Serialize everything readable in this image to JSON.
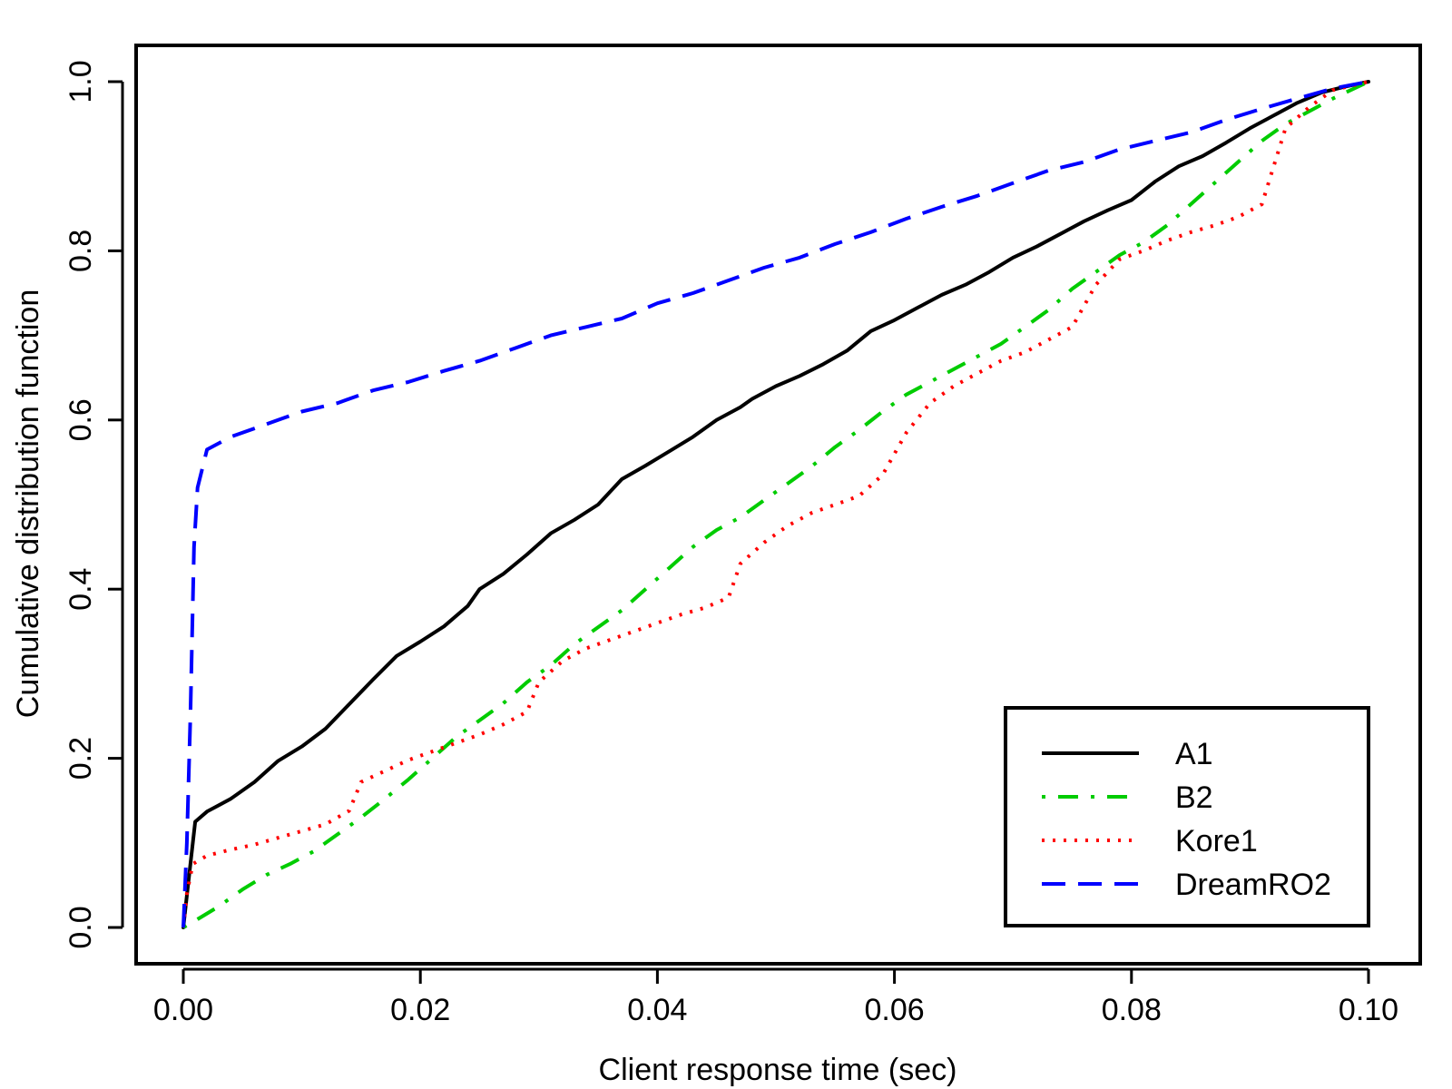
{
  "chart_data": {
    "type": "line",
    "title": "",
    "xlabel": "Client response time (sec)",
    "ylabel": "Cumulative distribution function",
    "xlim": [
      0,
      0.1
    ],
    "ylim": [
      0,
      1
    ],
    "xticks": [
      0,
      0.02,
      0.04,
      0.06,
      0.08,
      0.1
    ],
    "xtick_labels": [
      "0.00",
      "0.02",
      "0.04",
      "0.06",
      "0.08",
      "0.10"
    ],
    "yticks": [
      0,
      0.2,
      0.4,
      0.6,
      0.8,
      1
    ],
    "ytick_labels": [
      "0.0",
      "0.2",
      "0.4",
      "0.6",
      "0.8",
      "1.0"
    ],
    "grid": false,
    "legend": {
      "position": "bottom-right"
    },
    "series": [
      {
        "name": "A1",
        "color": "#000000",
        "linestyle": "solid",
        "points": [
          [
            0,
            0
          ],
          [
            0.0004,
            0.05
          ],
          [
            0.001,
            0.125
          ],
          [
            0.002,
            0.137
          ],
          [
            0.004,
            0.152
          ],
          [
            0.006,
            0.172
          ],
          [
            0.008,
            0.197
          ],
          [
            0.01,
            0.214
          ],
          [
            0.012,
            0.235
          ],
          [
            0.014,
            0.264
          ],
          [
            0.016,
            0.293
          ],
          [
            0.018,
            0.321
          ],
          [
            0.02,
            0.338
          ],
          [
            0.022,
            0.356
          ],
          [
            0.024,
            0.38
          ],
          [
            0.025,
            0.4
          ],
          [
            0.027,
            0.418
          ],
          [
            0.029,
            0.441
          ],
          [
            0.031,
            0.466
          ],
          [
            0.033,
            0.482
          ],
          [
            0.035,
            0.5
          ],
          [
            0.037,
            0.53
          ],
          [
            0.039,
            0.546
          ],
          [
            0.041,
            0.563
          ],
          [
            0.043,
            0.58
          ],
          [
            0.045,
            0.6
          ],
          [
            0.047,
            0.615
          ],
          [
            0.048,
            0.625
          ],
          [
            0.05,
            0.64
          ],
          [
            0.052,
            0.652
          ],
          [
            0.054,
            0.666
          ],
          [
            0.056,
            0.682
          ],
          [
            0.058,
            0.705
          ],
          [
            0.06,
            0.718
          ],
          [
            0.062,
            0.733
          ],
          [
            0.064,
            0.748
          ],
          [
            0.066,
            0.76
          ],
          [
            0.068,
            0.775
          ],
          [
            0.07,
            0.792
          ],
          [
            0.072,
            0.805
          ],
          [
            0.074,
            0.82
          ],
          [
            0.076,
            0.835
          ],
          [
            0.078,
            0.848
          ],
          [
            0.08,
            0.86
          ],
          [
            0.082,
            0.882
          ],
          [
            0.084,
            0.9
          ],
          [
            0.086,
            0.912
          ],
          [
            0.088,
            0.928
          ],
          [
            0.09,
            0.945
          ],
          [
            0.092,
            0.96
          ],
          [
            0.094,
            0.975
          ],
          [
            0.096,
            0.987
          ],
          [
            0.098,
            0.994
          ],
          [
            0.1,
            1.0
          ]
        ]
      },
      {
        "name": "B2",
        "color": "#00cc00",
        "linestyle": "dashdot",
        "points": [
          [
            0,
            0
          ],
          [
            0.001,
            0.008
          ],
          [
            0.003,
            0.025
          ],
          [
            0.005,
            0.045
          ],
          [
            0.007,
            0.062
          ],
          [
            0.009,
            0.075
          ],
          [
            0.011,
            0.09
          ],
          [
            0.013,
            0.11
          ],
          [
            0.015,
            0.13
          ],
          [
            0.017,
            0.152
          ],
          [
            0.019,
            0.175
          ],
          [
            0.021,
            0.2
          ],
          [
            0.023,
            0.225
          ],
          [
            0.025,
            0.245
          ],
          [
            0.027,
            0.265
          ],
          [
            0.029,
            0.29
          ],
          [
            0.031,
            0.31
          ],
          [
            0.033,
            0.335
          ],
          [
            0.035,
            0.355
          ],
          [
            0.037,
            0.375
          ],
          [
            0.039,
            0.4
          ],
          [
            0.041,
            0.425
          ],
          [
            0.043,
            0.45
          ],
          [
            0.045,
            0.47
          ],
          [
            0.047,
            0.485
          ],
          [
            0.049,
            0.505
          ],
          [
            0.051,
            0.525
          ],
          [
            0.053,
            0.545
          ],
          [
            0.055,
            0.568
          ],
          [
            0.057,
            0.588
          ],
          [
            0.059,
            0.61
          ],
          [
            0.061,
            0.63
          ],
          [
            0.063,
            0.645
          ],
          [
            0.065,
            0.66
          ],
          [
            0.067,
            0.675
          ],
          [
            0.069,
            0.69
          ],
          [
            0.071,
            0.71
          ],
          [
            0.073,
            0.73
          ],
          [
            0.075,
            0.755
          ],
          [
            0.077,
            0.775
          ],
          [
            0.079,
            0.795
          ],
          [
            0.081,
            0.81
          ],
          [
            0.083,
            0.83
          ],
          [
            0.085,
            0.855
          ],
          [
            0.087,
            0.88
          ],
          [
            0.089,
            0.905
          ],
          [
            0.091,
            0.93
          ],
          [
            0.093,
            0.95
          ],
          [
            0.095,
            0.965
          ],
          [
            0.097,
            0.98
          ],
          [
            0.1,
            1.0
          ]
        ]
      },
      {
        "name": "Kore1",
        "color": "#ff0000",
        "linestyle": "dotted",
        "points": [
          [
            0,
            0
          ],
          [
            0.0003,
            0.04
          ],
          [
            0.0008,
            0.075
          ],
          [
            0.002,
            0.085
          ],
          [
            0.004,
            0.092
          ],
          [
            0.006,
            0.098
          ],
          [
            0.008,
            0.106
          ],
          [
            0.01,
            0.114
          ],
          [
            0.012,
            0.122
          ],
          [
            0.014,
            0.138
          ],
          [
            0.015,
            0.172
          ],
          [
            0.017,
            0.185
          ],
          [
            0.019,
            0.198
          ],
          [
            0.021,
            0.208
          ],
          [
            0.023,
            0.218
          ],
          [
            0.025,
            0.228
          ],
          [
            0.027,
            0.24
          ],
          [
            0.029,
            0.255
          ],
          [
            0.03,
            0.29
          ],
          [
            0.032,
            0.315
          ],
          [
            0.034,
            0.33
          ],
          [
            0.036,
            0.34
          ],
          [
            0.038,
            0.35
          ],
          [
            0.04,
            0.36
          ],
          [
            0.042,
            0.37
          ],
          [
            0.044,
            0.378
          ],
          [
            0.046,
            0.39
          ],
          [
            0.047,
            0.43
          ],
          [
            0.049,
            0.455
          ],
          [
            0.051,
            0.475
          ],
          [
            0.053,
            0.49
          ],
          [
            0.055,
            0.5
          ],
          [
            0.057,
            0.51
          ],
          [
            0.059,
            0.535
          ],
          [
            0.061,
            0.585
          ],
          [
            0.063,
            0.62
          ],
          [
            0.065,
            0.64
          ],
          [
            0.067,
            0.655
          ],
          [
            0.069,
            0.67
          ],
          [
            0.071,
            0.68
          ],
          [
            0.073,
            0.695
          ],
          [
            0.075,
            0.71
          ],
          [
            0.077,
            0.76
          ],
          [
            0.079,
            0.79
          ],
          [
            0.081,
            0.8
          ],
          [
            0.083,
            0.812
          ],
          [
            0.085,
            0.822
          ],
          [
            0.087,
            0.83
          ],
          [
            0.089,
            0.84
          ],
          [
            0.091,
            0.855
          ],
          [
            0.092,
            0.9
          ],
          [
            0.093,
            0.945
          ],
          [
            0.095,
            0.97
          ],
          [
            0.097,
            0.99
          ],
          [
            0.1,
            1.0
          ]
        ]
      },
      {
        "name": "DreamRO2",
        "color": "#0000ff",
        "linestyle": "dashed",
        "points": [
          [
            0,
            0
          ],
          [
            0.0003,
            0.1
          ],
          [
            0.0006,
            0.25
          ],
          [
            0.0009,
            0.45
          ],
          [
            0.0012,
            0.52
          ],
          [
            0.002,
            0.565
          ],
          [
            0.004,
            0.58
          ],
          [
            0.006,
            0.59
          ],
          [
            0.008,
            0.6
          ],
          [
            0.01,
            0.61
          ],
          [
            0.013,
            0.62
          ],
          [
            0.016,
            0.635
          ],
          [
            0.019,
            0.645
          ],
          [
            0.022,
            0.658
          ],
          [
            0.025,
            0.67
          ],
          [
            0.028,
            0.685
          ],
          [
            0.031,
            0.7
          ],
          [
            0.034,
            0.71
          ],
          [
            0.037,
            0.72
          ],
          [
            0.04,
            0.738
          ],
          [
            0.043,
            0.75
          ],
          [
            0.046,
            0.765
          ],
          [
            0.049,
            0.78
          ],
          [
            0.052,
            0.792
          ],
          [
            0.055,
            0.808
          ],
          [
            0.058,
            0.822
          ],
          [
            0.061,
            0.838
          ],
          [
            0.064,
            0.852
          ],
          [
            0.067,
            0.865
          ],
          [
            0.07,
            0.88
          ],
          [
            0.073,
            0.895
          ],
          [
            0.076,
            0.905
          ],
          [
            0.079,
            0.92
          ],
          [
            0.082,
            0.93
          ],
          [
            0.085,
            0.94
          ],
          [
            0.088,
            0.955
          ],
          [
            0.091,
            0.968
          ],
          [
            0.094,
            0.98
          ],
          [
            0.097,
            0.992
          ],
          [
            0.1,
            1.0
          ]
        ]
      }
    ]
  }
}
